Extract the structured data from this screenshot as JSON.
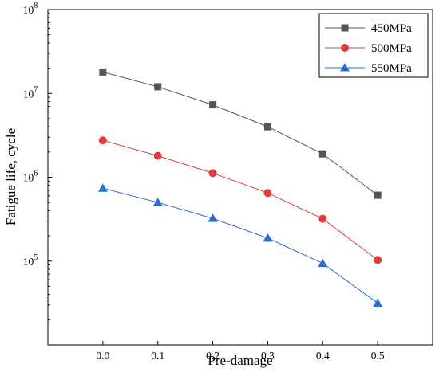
{
  "chart_data": {
    "type": "line",
    "xlabel": "Pre-damage",
    "ylabel": "Fatigue life, cycle",
    "x": [
      0.0,
      0.1,
      0.2,
      0.3,
      0.4,
      0.5
    ],
    "x_ticks": [
      "0.0",
      "0.1",
      "0.2",
      "0.3",
      "0.4",
      "0.5"
    ],
    "xlim": [
      -0.1,
      0.6
    ],
    "yscale": "log",
    "ylim": [
      10000,
      100000000
    ],
    "y_ticks": [
      {
        "base": "10",
        "exp": "5",
        "value": 100000
      },
      {
        "base": "10",
        "exp": "6",
        "value": 1000000
      },
      {
        "base": "10",
        "exp": "7",
        "value": 10000000
      },
      {
        "base": "10",
        "exp": "8",
        "value": 100000000
      }
    ],
    "grid": false,
    "legend_position": "top-right",
    "series": [
      {
        "name": "450MPa",
        "color": "#555555",
        "marker": "square",
        "values": [
          18000000,
          12000000,
          7300000,
          4000000,
          1900000,
          610000
        ]
      },
      {
        "name": "500MPa",
        "color": "#e03c3c",
        "marker": "circle",
        "values": [
          2750000,
          1800000,
          1120000,
          650000,
          320000,
          103000
        ]
      },
      {
        "name": "550MPa",
        "color": "#2a6fcf",
        "marker": "triangle",
        "values": [
          740000,
          500000,
          323000,
          188000,
          94000,
          31500
        ]
      }
    ]
  }
}
